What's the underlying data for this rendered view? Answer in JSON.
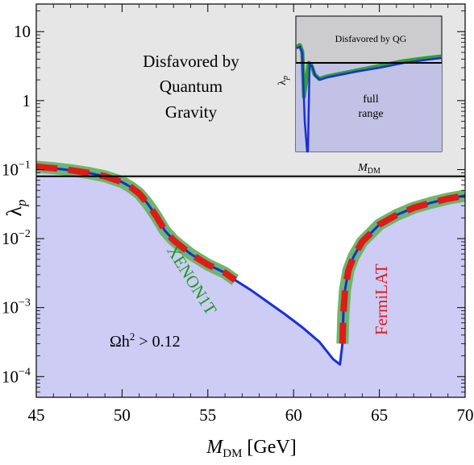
{
  "chart_data": {
    "type": "line",
    "xlabel_main": "M",
    "xlabel_sub": "DM",
    "xlabel_unit": " [GeV]",
    "ylabel": "λ",
    "ylabel_sub": "p",
    "xlim": [
      45,
      70
    ],
    "ylim_log10": [
      -4.3,
      1.4
    ],
    "yscale": "log",
    "x_ticks": [
      {
        "v": 45,
        "label": "45"
      },
      {
        "v": 50,
        "label": "50"
      },
      {
        "v": 55,
        "label": "55"
      },
      {
        "v": 60,
        "label": "60"
      },
      {
        "v": 65,
        "label": "65"
      },
      {
        "v": 70,
        "label": "70"
      }
    ],
    "y_ticks": [
      {
        "v": 10,
        "label": "10",
        "exp": ""
      },
      {
        "v": 1,
        "label": "1",
        "exp": ""
      },
      {
        "v": 0.1,
        "label": "10",
        "exp": "−1"
      },
      {
        "v": 0.01,
        "label": "10",
        "exp": "−2"
      },
      {
        "v": 0.001,
        "label": "10",
        "exp": "−3"
      },
      {
        "v": 0.0001,
        "label": "10",
        "exp": "−4"
      }
    ],
    "qg_bound": 0.08,
    "regions": {
      "qg_label": [
        "Disfavored by",
        "Quantum",
        "Gravity"
      ],
      "relic_label_main": "Ωh",
      "relic_label_sup": "2",
      "relic_label_rest": " > 0.12"
    },
    "series": [
      {
        "name": "relic curve",
        "x": [
          45,
          46,
          47,
          48,
          49,
          50,
          50.5,
          51,
          51.5,
          52,
          52.5,
          53,
          53.5,
          54,
          55,
          56,
          56.6,
          57.5,
          58.5,
          59.5,
          60.5,
          61.5,
          62.3,
          62.7,
          62.85,
          62.9,
          63.0,
          63.2,
          63.5,
          64,
          64.5,
          65,
          66,
          67,
          68,
          69,
          70
        ],
        "y": [
          0.11,
          0.105,
          0.098,
          0.09,
          0.08,
          0.066,
          0.056,
          0.045,
          0.032,
          0.021,
          0.013,
          0.0095,
          0.0075,
          0.006,
          0.0042,
          0.0032,
          0.0025,
          0.0018,
          0.0012,
          0.0008,
          0.00052,
          0.00032,
          0.00018,
          0.00015,
          0.0003,
          0.0008,
          0.0018,
          0.0035,
          0.0055,
          0.009,
          0.012,
          0.016,
          0.022,
          0.028,
          0.033,
          0.038,
          0.042
        ]
      }
    ],
    "xenon": {
      "name": "XENON1T",
      "x_range": [
        45,
        56.6
      ]
    },
    "fermi": {
      "name": "FermiLAT",
      "x_range": [
        62.8,
        70
      ]
    },
    "inset": {
      "label_top": "Disfavored by QG",
      "label_full": [
        "full",
        "range"
      ],
      "xlabel_main": "M",
      "xlabel_sub": "DM",
      "ylabel": "λ",
      "ylabel_sub": "p"
    },
    "colors": {
      "qg_region": "#e6e6e6",
      "relic_region": "#ccccf5",
      "curve": "#1a2fd6",
      "xenon_band": "#6db66a",
      "xenon_text": "#1a9a1a",
      "fermi_dash": "#e01a1a",
      "fermi_text": "#e01a1a"
    }
  }
}
